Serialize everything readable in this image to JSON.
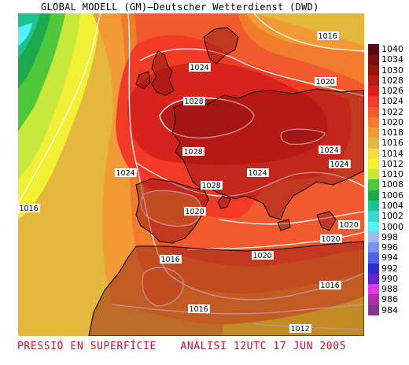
{
  "title": "GLOBAL MODELL (GM)—Deutscher Wetterdienst (DWD)",
  "caption": {
    "left": "PRESSIÓ EN SUPERFÍCIE",
    "right": "ANÀLISI 12UTC 17 JUN 2005"
  },
  "legend": [
    {
      "value": "1040",
      "color": "#5a0a14"
    },
    {
      "value": "1034",
      "color": "#7a0e0e"
    },
    {
      "value": "1030",
      "color": "#9a1410"
    },
    {
      "value": "1028",
      "color": "#b81c1a"
    },
    {
      "value": "1026",
      "color": "#d8221c"
    },
    {
      "value": "1024",
      "color": "#f23a26"
    },
    {
      "value": "1022",
      "color": "#f05a2e"
    },
    {
      "value": "1020",
      "color": "#f07c2c"
    },
    {
      "value": "1018",
      "color": "#f29a36"
    },
    {
      "value": "1016",
      "color": "#e4b83c"
    },
    {
      "value": "1014",
      "color": "#f5dc40"
    },
    {
      "value": "1012",
      "color": "#f2f034"
    },
    {
      "value": "1010",
      "color": "#c8e83c"
    },
    {
      "value": "1008",
      "color": "#50c83c"
    },
    {
      "value": "1006",
      "color": "#1ea84e"
    },
    {
      "value": "1004",
      "color": "#1cc494"
    },
    {
      "value": "1002",
      "color": "#38d8d2"
    },
    {
      "value": "1000",
      "color": "#56f0f8"
    },
    {
      "value": "998",
      "color": "#a2b8f0"
    },
    {
      "value": "996",
      "color": "#7890ec"
    },
    {
      "value": "994",
      "color": "#4c62e8"
    },
    {
      "value": "992",
      "color": "#2c2cd2"
    },
    {
      "value": "990",
      "color": "#6a22c8"
    },
    {
      "value": "988",
      "color": "#e038e6"
    },
    {
      "value": "986",
      "color": "#b02eaa"
    },
    {
      "value": "984",
      "color": "#84368c"
    }
  ],
  "isobar_labels": [
    "1016",
    "1024",
    "1020",
    "1028",
    "1028",
    "1024",
    "1024",
    "1024",
    "1028",
    "1024",
    "1020",
    "1016",
    "1020",
    "1020",
    "1016",
    "1020",
    "1016",
    "1016",
    "1012"
  ]
}
